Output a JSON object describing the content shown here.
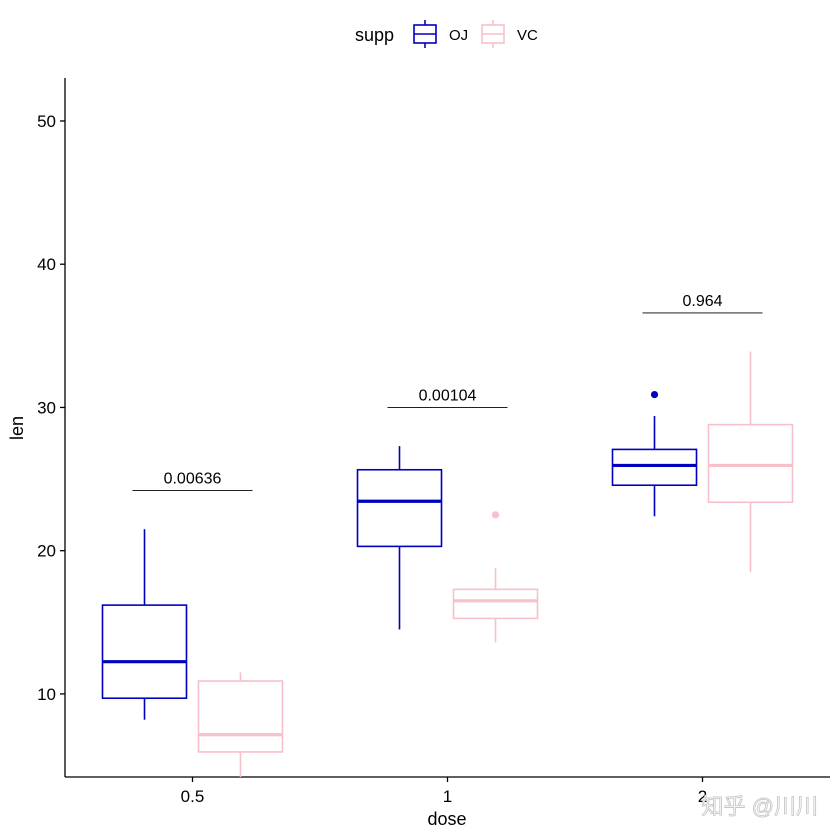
{
  "chart_data": {
    "type": "boxplot",
    "xlabel": "dose",
    "ylabel": "len",
    "categories": [
      "0.5",
      "1",
      "2"
    ],
    "ylim": [
      4.2,
      53
    ],
    "yticks": [
      10,
      20,
      30,
      40,
      50
    ],
    "legend": {
      "title": "supp",
      "placement": "top"
    },
    "grid": false,
    "series": [
      {
        "name": "OJ",
        "color": "#0000C0",
        "boxes": [
          {
            "category": "0.5",
            "min": 8.2,
            "q1": 9.7,
            "median": 12.25,
            "q3": 16.2,
            "max": 21.5,
            "outliers": []
          },
          {
            "category": "1",
            "min": 14.5,
            "q1": 20.3,
            "median": 23.45,
            "q3": 25.65,
            "max": 27.3,
            "outliers": []
          },
          {
            "category": "2",
            "min": 22.4,
            "q1": 24.57,
            "median": 25.95,
            "q3": 27.07,
            "max": 29.4,
            "outliers": [
              30.9
            ]
          }
        ]
      },
      {
        "name": "VC",
        "color": "#F8C0C8",
        "boxes": [
          {
            "category": "0.5",
            "min": 4.2,
            "q1": 5.95,
            "median": 7.15,
            "q3": 10.9,
            "max": 11.5,
            "outliers": []
          },
          {
            "category": "1",
            "min": 13.6,
            "q1": 15.27,
            "median": 16.5,
            "q3": 17.3,
            "max": 18.8,
            "outliers": [
              22.5
            ]
          },
          {
            "category": "2",
            "min": 18.5,
            "q1": 23.38,
            "median": 25.95,
            "q3": 28.8,
            "max": 33.9,
            "outliers": []
          }
        ]
      }
    ],
    "annotations": [
      {
        "category": "0.5",
        "label": "0.00636",
        "y": 24.2
      },
      {
        "category": "1",
        "label": "0.00104",
        "y": 30.0
      },
      {
        "category": "2",
        "label": "0.964",
        "y": 36.6
      }
    ]
  },
  "watermark": "知乎 @川川"
}
